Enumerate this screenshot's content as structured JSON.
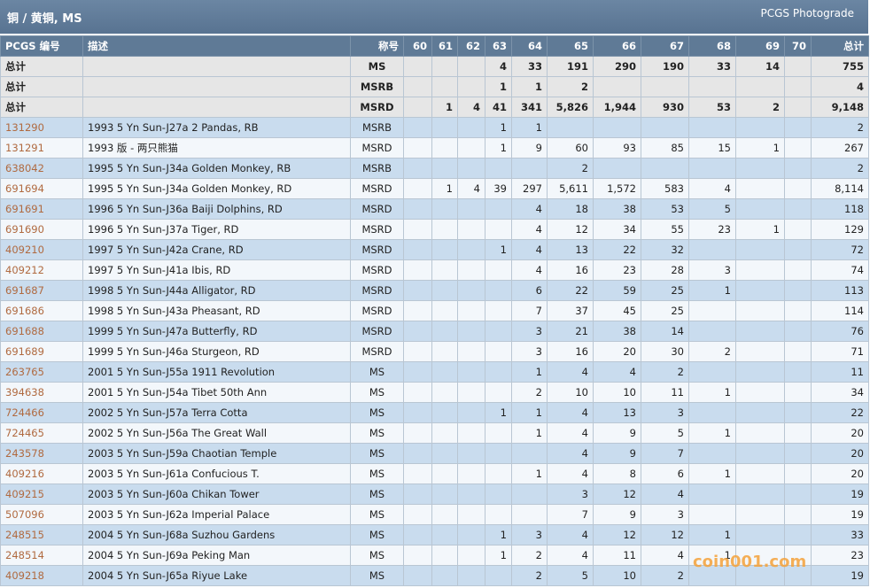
{
  "header": {
    "title": "铜 / 黄铜, MS",
    "right": "PCGS Photograde"
  },
  "table": {
    "columns": [
      "PCGS 编号",
      "描述",
      "称号",
      "60",
      "61",
      "62",
      "63",
      "64",
      "65",
      "66",
      "67",
      "68",
      "69",
      "70",
      "总计"
    ],
    "totals": [
      [
        "总计",
        null,
        "MS",
        null,
        null,
        null,
        "4",
        "33",
        "191",
        "290",
        "190",
        "33",
        "14",
        null,
        "755"
      ],
      [
        "总计",
        null,
        "MSRB",
        null,
        null,
        null,
        "1",
        "1",
        "2",
        null,
        null,
        null,
        null,
        null,
        "4"
      ],
      [
        "总计",
        null,
        "MSRD",
        null,
        "1",
        "4",
        "41",
        "341",
        "5,826",
        "1,944",
        "930",
        "53",
        "2",
        null,
        "9,148"
      ]
    ],
    "rows": [
      [
        "131290",
        "1993 5 Yn Sun-J27a 2 Pandas, RB",
        "MSRB",
        null,
        null,
        null,
        "1",
        "1",
        null,
        null,
        null,
        null,
        null,
        null,
        "2"
      ],
      [
        "131291",
        "1993 版 - 两只熊猫",
        "MSRD",
        null,
        null,
        null,
        "1",
        "9",
        "60",
        "93",
        "85",
        "15",
        "1",
        null,
        "267"
      ],
      [
        "638042",
        "1995 5 Yn Sun-J34a Golden Monkey, RB",
        "MSRB",
        null,
        null,
        null,
        null,
        null,
        "2",
        null,
        null,
        null,
        null,
        null,
        "2"
      ],
      [
        "691694",
        "1995 5 Yn Sun-J34a Golden Monkey, RD",
        "MSRD",
        null,
        "1",
        "4",
        "39",
        "297",
        "5,611",
        "1,572",
        "583",
        "4",
        null,
        null,
        "8,114"
      ],
      [
        "691691",
        "1996 5 Yn Sun-J36a Baiji Dolphins, RD",
        "MSRD",
        null,
        null,
        null,
        null,
        "4",
        "18",
        "38",
        "53",
        "5",
        null,
        null,
        "118"
      ],
      [
        "691690",
        "1996 5 Yn Sun-J37a Tiger, RD",
        "MSRD",
        null,
        null,
        null,
        null,
        "4",
        "12",
        "34",
        "55",
        "23",
        "1",
        null,
        "129"
      ],
      [
        "409210",
        "1997 5 Yn Sun-J42a Crane, RD",
        "MSRD",
        null,
        null,
        null,
        "1",
        "4",
        "13",
        "22",
        "32",
        null,
        null,
        null,
        "72"
      ],
      [
        "409212",
        "1997 5 Yn Sun-J41a Ibis, RD",
        "MSRD",
        null,
        null,
        null,
        null,
        "4",
        "16",
        "23",
        "28",
        "3",
        null,
        null,
        "74"
      ],
      [
        "691687",
        "1998 5 Yn Sun-J44a Alligator, RD",
        "MSRD",
        null,
        null,
        null,
        null,
        "6",
        "22",
        "59",
        "25",
        "1",
        null,
        null,
        "113"
      ],
      [
        "691686",
        "1998 5 Yn Sun-J43a Pheasant, RD",
        "MSRD",
        null,
        null,
        null,
        null,
        "7",
        "37",
        "45",
        "25",
        null,
        null,
        null,
        "114"
      ],
      [
        "691688",
        "1999 5 Yn Sun-J47a Butterfly, RD",
        "MSRD",
        null,
        null,
        null,
        null,
        "3",
        "21",
        "38",
        "14",
        null,
        null,
        null,
        "76"
      ],
      [
        "691689",
        "1999 5 Yn Sun-J46a Sturgeon, RD",
        "MSRD",
        null,
        null,
        null,
        null,
        "3",
        "16",
        "20",
        "30",
        "2",
        null,
        null,
        "71"
      ],
      [
        "263765",
        "2001 5 Yn Sun-J55a 1911 Revolution",
        "MS",
        null,
        null,
        null,
        null,
        "1",
        "4",
        "4",
        "2",
        null,
        null,
        null,
        "11"
      ],
      [
        "394638",
        "2001 5 Yn Sun-J54a Tibet 50th Ann",
        "MS",
        null,
        null,
        null,
        null,
        "2",
        "10",
        "10",
        "11",
        "1",
        null,
        null,
        "34"
      ],
      [
        "724466",
        "2002 5 Yn Sun-J57a Terra Cotta",
        "MS",
        null,
        null,
        null,
        "1",
        "1",
        "4",
        "13",
        "3",
        null,
        null,
        null,
        "22"
      ],
      [
        "724465",
        "2002 5 Yn Sun-J56a The Great Wall",
        "MS",
        null,
        null,
        null,
        null,
        "1",
        "4",
        "9",
        "5",
        "1",
        null,
        null,
        "20"
      ],
      [
        "243578",
        "2003 5 Yn Sun-J59a Chaotian Temple",
        "MS",
        null,
        null,
        null,
        null,
        null,
        "4",
        "9",
        "7",
        null,
        null,
        null,
        "20"
      ],
      [
        "409216",
        "2003 5 Yn Sun-J61a Confucious T.",
        "MS",
        null,
        null,
        null,
        null,
        "1",
        "4",
        "8",
        "6",
        "1",
        null,
        null,
        "20"
      ],
      [
        "409215",
        "2003 5 Yn Sun-J60a Chikan Tower",
        "MS",
        null,
        null,
        null,
        null,
        null,
        "3",
        "12",
        "4",
        null,
        null,
        null,
        "19"
      ],
      [
        "507096",
        "2003 5 Yn Sun-J62a Imperial Palace",
        "MS",
        null,
        null,
        null,
        null,
        null,
        "7",
        "9",
        "3",
        null,
        null,
        null,
        "19"
      ],
      [
        "248515",
        "2004 5 Yn Sun-J68a Suzhou Gardens",
        "MS",
        null,
        null,
        null,
        "1",
        "3",
        "4",
        "12",
        "12",
        "1",
        null,
        null,
        "33"
      ],
      [
        "248514",
        "2004 5 Yn Sun-J69a Peking Man",
        "MS",
        null,
        null,
        null,
        "1",
        "2",
        "4",
        "11",
        "4",
        "1",
        null,
        null,
        "23"
      ],
      [
        "409218",
        "2004 5 Yn Sun-J65a Riyue Lake",
        "MS",
        null,
        null,
        null,
        null,
        "2",
        "5",
        "10",
        "2",
        null,
        null,
        null,
        "19"
      ]
    ]
  },
  "watermark": "coin001.com"
}
